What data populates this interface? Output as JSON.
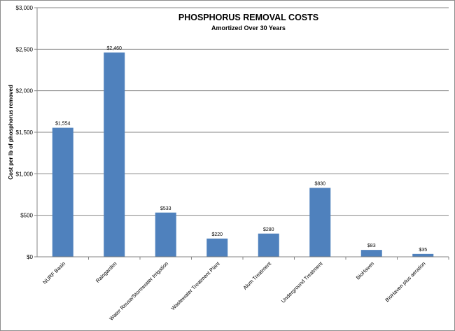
{
  "chart_data": {
    "type": "bar",
    "title": "PHOSPHORUS REMOVAL COSTS",
    "subtitle": "Amortized Over 30 Years",
    "ylabel": "Cost per lb of phosphorus  removed",
    "xlabel": "",
    "ylim": [
      0,
      3000
    ],
    "y_ticks": [
      0,
      500,
      1000,
      1500,
      2000,
      2500,
      3000
    ],
    "y_tick_labels": [
      "$0",
      "$500",
      "$1,000",
      "$1,500",
      "$2,000",
      "$2,500",
      "$3,000"
    ],
    "grid": true,
    "legend": "none",
    "bar_color": "#4f81bd",
    "categories": [
      "NURF Basin",
      "Raingarden",
      "Water Reuse/Stormwater Irrigation",
      "Wastewater Treatment Plant",
      "Alum Treatment",
      "Underground Treatment",
      "BioHaven",
      "BioHaven plus aeration"
    ],
    "values": [
      1554,
      2460,
      533,
      220,
      280,
      830,
      83,
      35
    ],
    "data_labels": [
      "$1,554",
      "$2,460",
      "$533",
      "$220",
      "$280",
      "$830",
      "$83",
      "$35"
    ]
  }
}
